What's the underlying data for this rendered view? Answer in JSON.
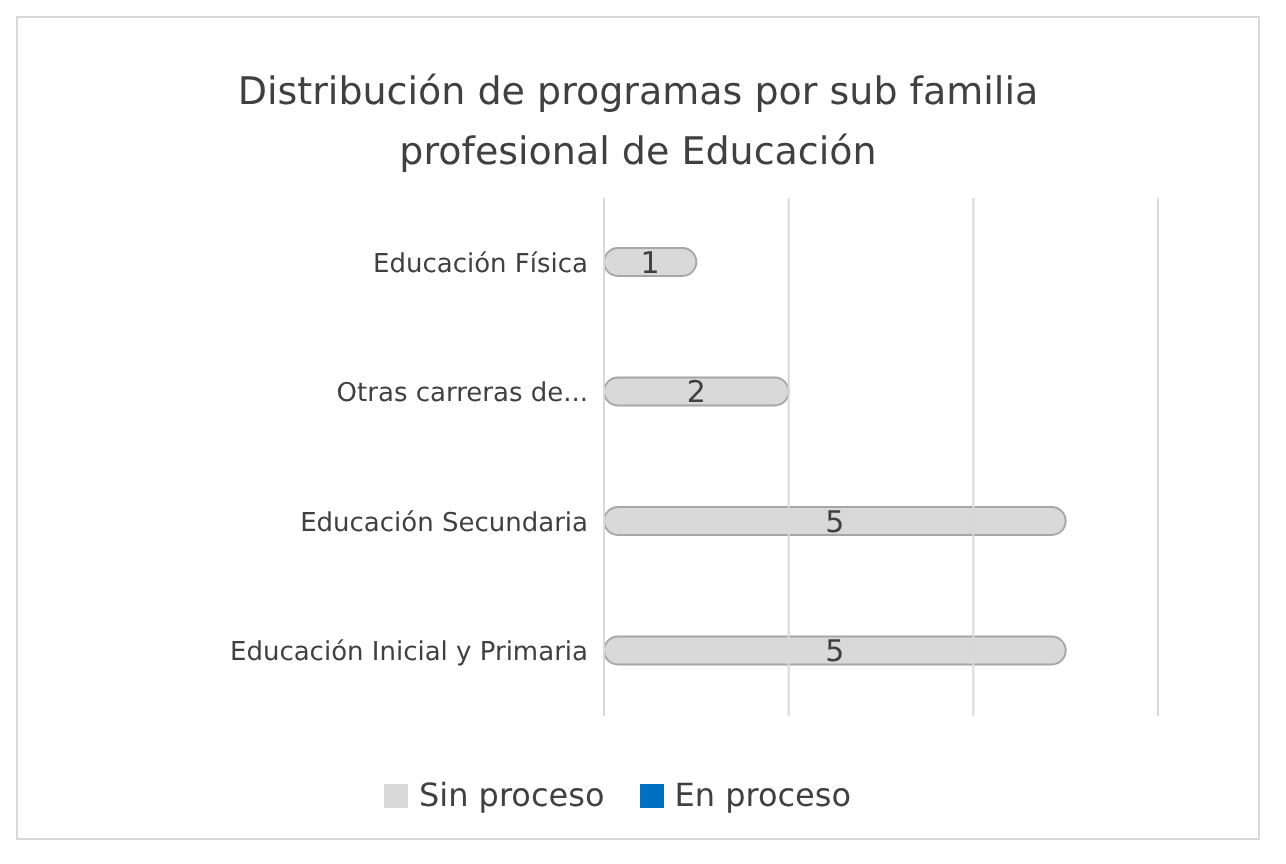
{
  "chart_data": {
    "type": "bar",
    "orientation": "horizontal",
    "stacked": true,
    "title": "Distribución de programas por sub familia profesional de Educación",
    "categories": [
      "Educación Física",
      "Otras carreras de...",
      "Educación Secundaria",
      "Educación Inicial y Primaria"
    ],
    "series": [
      {
        "name": "Sin proceso",
        "color": "#d9d9d9",
        "values": [
          1,
          2,
          5,
          5
        ]
      },
      {
        "name": "En proceso",
        "color": "#0070c0",
        "values": [
          null,
          null,
          null,
          null
        ]
      }
    ],
    "xlim": [
      0,
      6
    ],
    "xticks": [
      {
        "value": 0,
        "label": null
      },
      {
        "value": 2,
        "label": null
      },
      {
        "value": 4,
        "label": null
      },
      {
        "value": 6,
        "label": null
      }
    ],
    "tick_labels": "y",
    "grid": "x",
    "data_labels": true,
    "legend": "bottom"
  }
}
